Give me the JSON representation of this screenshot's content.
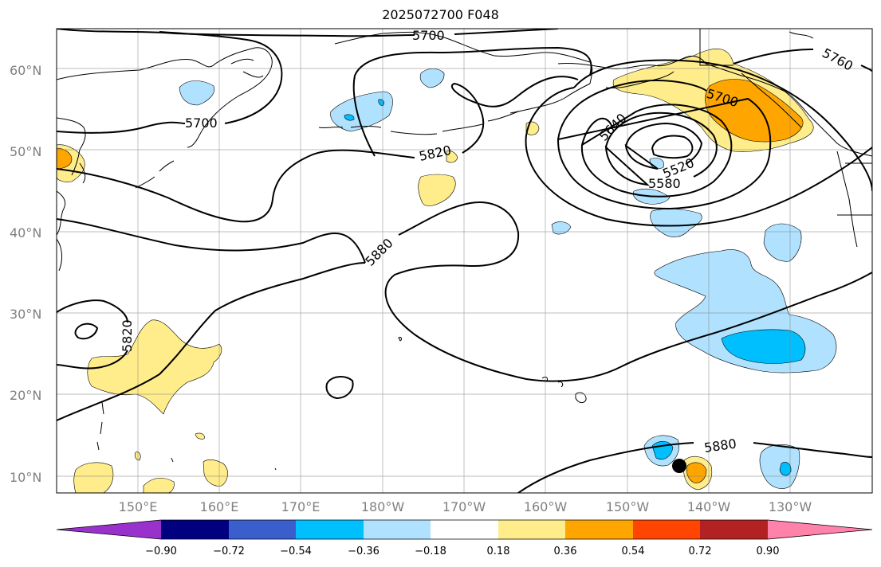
{
  "title": "2025072700 F048",
  "map": {
    "lat_labels": [
      "60°N",
      "50°N",
      "40°N",
      "30°N",
      "20°N",
      "10°N"
    ],
    "lon_labels": [
      "150°E",
      "160°E",
      "170°E",
      "180°W",
      "170°W",
      "160°W",
      "150°W",
      "140°W",
      "130°W"
    ],
    "contour_labels": [
      "5700",
      "5700",
      "5760",
      "5700",
      "5640",
      "5520",
      "5580",
      "5820",
      "5880",
      "5820",
      "5880"
    ],
    "marker": "point"
  },
  "colorbar": {
    "ticks": [
      "−0.90",
      "−0.72",
      "−0.54",
      "−0.36",
      "−0.18",
      "0.18",
      "0.36",
      "0.54",
      "0.72",
      "0.90"
    ],
    "colors": {
      "under": "#9932cc",
      "c1": "#000080",
      "c2": "#3a5fcd",
      "c3": "#00bfff",
      "c4": "#b0e2ff",
      "c5": "#ffffff",
      "c6": "#ffec8b",
      "c7": "#ffa500",
      "c8": "#ff4500",
      "c9": "#b22222",
      "over": "#ff82ab"
    }
  }
}
